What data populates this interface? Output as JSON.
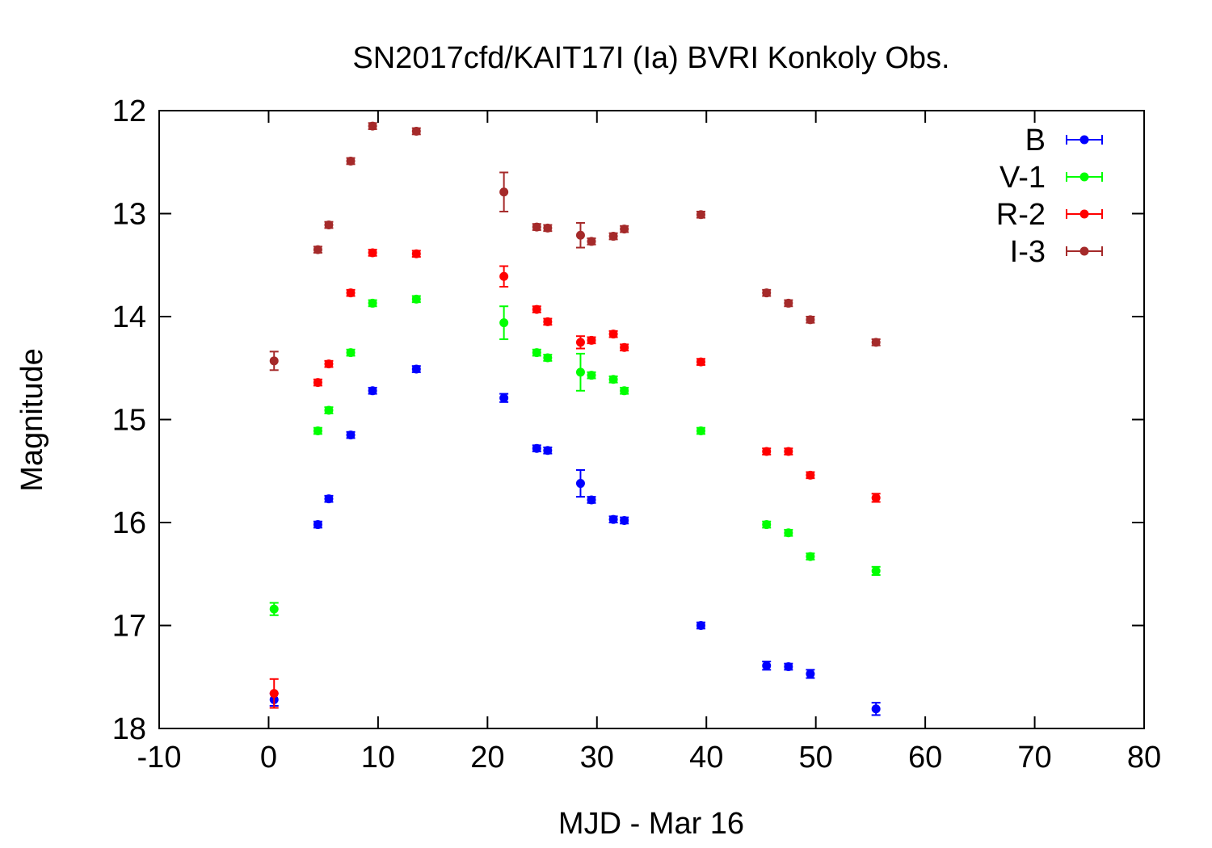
{
  "chart_data": {
    "type": "scatter",
    "title": "SN2017cfd/KAIT17I (Ia) BVRI Konkoly Obs.",
    "xlabel": "MJD - Mar 16",
    "ylabel": "Magnitude",
    "xlim": [
      -10,
      80
    ],
    "ylim": [
      18,
      12
    ],
    "y_inverted": true,
    "xticks": [
      "-10",
      "0",
      "10",
      "20",
      "30",
      "40",
      "50",
      "60",
      "70",
      "80"
    ],
    "yticks": [
      "12",
      "13",
      "14",
      "15",
      "16",
      "17",
      "18"
    ],
    "grid": false,
    "legend_position": "top-right",
    "series": [
      {
        "name": "B",
        "color": "#0000ff",
        "points": [
          {
            "x": 0.5,
            "y": 17.72,
            "err": 0.06
          },
          {
            "x": 4.5,
            "y": 16.02,
            "err": 0.03
          },
          {
            "x": 5.5,
            "y": 15.77,
            "err": 0.03
          },
          {
            "x": 7.5,
            "y": 15.15,
            "err": 0.03
          },
          {
            "x": 9.5,
            "y": 14.72,
            "err": 0.03
          },
          {
            "x": 13.5,
            "y": 14.51,
            "err": 0.03
          },
          {
            "x": 21.5,
            "y": 14.79,
            "err": 0.04
          },
          {
            "x": 24.5,
            "y": 15.28,
            "err": 0.03
          },
          {
            "x": 25.5,
            "y": 15.3,
            "err": 0.03
          },
          {
            "x": 28.5,
            "y": 15.62,
            "err": 0.13
          },
          {
            "x": 29.5,
            "y": 15.78,
            "err": 0.03
          },
          {
            "x": 31.5,
            "y": 15.97,
            "err": 0.03
          },
          {
            "x": 32.5,
            "y": 15.98,
            "err": 0.03
          },
          {
            "x": 39.5,
            "y": 17.0,
            "err": 0.03
          },
          {
            "x": 45.5,
            "y": 17.39,
            "err": 0.04
          },
          {
            "x": 47.5,
            "y": 17.4,
            "err": 0.03
          },
          {
            "x": 49.5,
            "y": 17.47,
            "err": 0.04
          },
          {
            "x": 55.5,
            "y": 17.81,
            "err": 0.06
          }
        ]
      },
      {
        "name": "V-1",
        "color": "#00ff00",
        "points": [
          {
            "x": 0.5,
            "y": 16.84,
            "err": 0.06
          },
          {
            "x": 4.5,
            "y": 15.11,
            "err": 0.03
          },
          {
            "x": 5.5,
            "y": 14.91,
            "err": 0.03
          },
          {
            "x": 7.5,
            "y": 14.35,
            "err": 0.03
          },
          {
            "x": 9.5,
            "y": 13.87,
            "err": 0.03
          },
          {
            "x": 13.5,
            "y": 13.83,
            "err": 0.03
          },
          {
            "x": 21.5,
            "y": 14.06,
            "err": 0.16
          },
          {
            "x": 24.5,
            "y": 14.35,
            "err": 0.03
          },
          {
            "x": 25.5,
            "y": 14.4,
            "err": 0.03
          },
          {
            "x": 28.5,
            "y": 14.54,
            "err": 0.18
          },
          {
            "x": 29.5,
            "y": 14.57,
            "err": 0.03
          },
          {
            "x": 31.5,
            "y": 14.61,
            "err": 0.03
          },
          {
            "x": 32.5,
            "y": 14.72,
            "err": 0.03
          },
          {
            "x": 39.5,
            "y": 15.11,
            "err": 0.03
          },
          {
            "x": 45.5,
            "y": 16.02,
            "err": 0.03
          },
          {
            "x": 47.5,
            "y": 16.1,
            "err": 0.03
          },
          {
            "x": 49.5,
            "y": 16.33,
            "err": 0.03
          },
          {
            "x": 55.5,
            "y": 16.47,
            "err": 0.04
          }
        ]
      },
      {
        "name": "R-2",
        "color": "#ff0000",
        "points": [
          {
            "x": 0.5,
            "y": 17.66,
            "err": 0.14
          },
          {
            "x": 4.5,
            "y": 14.64,
            "err": 0.03
          },
          {
            "x": 5.5,
            "y": 14.46,
            "err": 0.03
          },
          {
            "x": 7.5,
            "y": 13.77,
            "err": 0.03
          },
          {
            "x": 9.5,
            "y": 13.38,
            "err": 0.03
          },
          {
            "x": 13.5,
            "y": 13.39,
            "err": 0.03
          },
          {
            "x": 21.5,
            "y": 13.61,
            "err": 0.1
          },
          {
            "x": 24.5,
            "y": 13.93,
            "err": 0.03
          },
          {
            "x": 25.5,
            "y": 14.05,
            "err": 0.03
          },
          {
            "x": 28.5,
            "y": 14.25,
            "err": 0.06
          },
          {
            "x": 29.5,
            "y": 14.23,
            "err": 0.03
          },
          {
            "x": 31.5,
            "y": 14.17,
            "err": 0.03
          },
          {
            "x": 32.5,
            "y": 14.3,
            "err": 0.03
          },
          {
            "x": 39.5,
            "y": 14.44,
            "err": 0.03
          },
          {
            "x": 45.5,
            "y": 15.31,
            "err": 0.03
          },
          {
            "x": 47.5,
            "y": 15.31,
            "err": 0.03
          },
          {
            "x": 49.5,
            "y": 15.54,
            "err": 0.03
          },
          {
            "x": 55.5,
            "y": 15.76,
            "err": 0.04
          }
        ]
      },
      {
        "name": "I-3",
        "color": "#a52a2a",
        "points": [
          {
            "x": 0.5,
            "y": 14.43,
            "err": 0.09
          },
          {
            "x": 4.5,
            "y": 13.35,
            "err": 0.03
          },
          {
            "x": 5.5,
            "y": 13.11,
            "err": 0.03
          },
          {
            "x": 7.5,
            "y": 12.49,
            "err": 0.03
          },
          {
            "x": 9.5,
            "y": 12.15,
            "err": 0.03
          },
          {
            "x": 13.5,
            "y": 12.2,
            "err": 0.03
          },
          {
            "x": 21.5,
            "y": 12.79,
            "err": 0.19
          },
          {
            "x": 24.5,
            "y": 13.13,
            "err": 0.03
          },
          {
            "x": 25.5,
            "y": 13.14,
            "err": 0.03
          },
          {
            "x": 28.5,
            "y": 13.21,
            "err": 0.12
          },
          {
            "x": 29.5,
            "y": 13.27,
            "err": 0.03
          },
          {
            "x": 31.5,
            "y": 13.22,
            "err": 0.03
          },
          {
            "x": 32.5,
            "y": 13.15,
            "err": 0.03
          },
          {
            "x": 39.5,
            "y": 13.01,
            "err": 0.03
          },
          {
            "x": 45.5,
            "y": 13.77,
            "err": 0.03
          },
          {
            "x": 47.5,
            "y": 13.87,
            "err": 0.03
          },
          {
            "x": 49.5,
            "y": 14.03,
            "err": 0.03
          },
          {
            "x": 55.5,
            "y": 14.25,
            "err": 0.03
          }
        ]
      }
    ]
  }
}
